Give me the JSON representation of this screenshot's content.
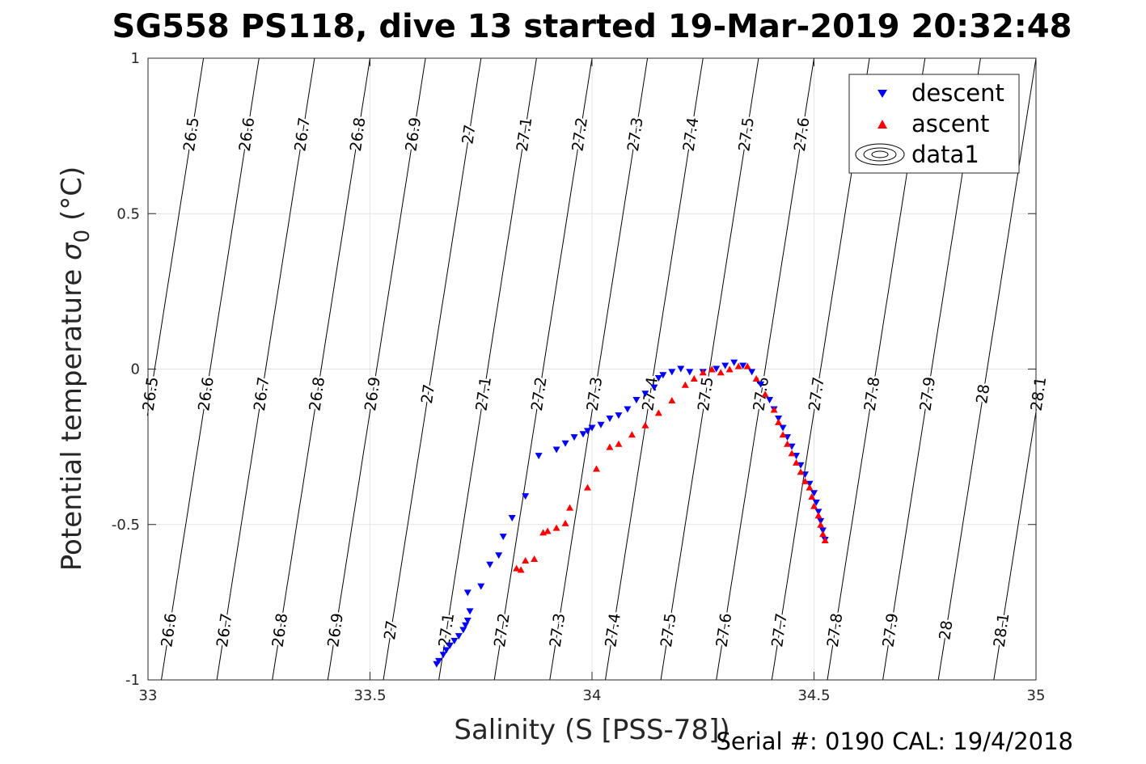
{
  "chart_data": {
    "type": "scatter",
    "title": "SG558 PS118, dive 13 started 19-Mar-2019 20:32:48",
    "xlabel": "Salinity (S [PSS-78])",
    "ylabel_main": "Potential temperature ",
    "ylabel_sigma": "σ",
    "ylabel_sub": "0",
    "ylabel_unit": " (°C)",
    "footer": "Serial #: 0190  CAL: 19/4/2018",
    "xlim": [
      33,
      35
    ],
    "ylim": [
      -1,
      1
    ],
    "x_ticks": [
      33,
      33.5,
      34,
      34.5,
      35
    ],
    "x_tick_labels": [
      "33",
      "33.5",
      "34",
      "34.5",
      "35"
    ],
    "y_ticks": [
      -1,
      -0.5,
      0,
      0.5,
      1
    ],
    "y_tick_labels": [
      "-1",
      "-0.5",
      "0",
      "0.5",
      "1"
    ],
    "grid": true,
    "legend_position": "top-right",
    "legend": [
      {
        "label": "descent",
        "marker": "triangle-down",
        "color": "#0000ff"
      },
      {
        "label": "ascent",
        "marker": "triangle-up",
        "color": "#ff0000"
      },
      {
        "label": "data1",
        "marker": "contour"
      }
    ],
    "contours": {
      "levels": [
        26.5,
        26.6,
        26.7,
        26.8,
        26.9,
        27.0,
        27.1,
        27.2,
        27.3,
        27.4,
        27.5,
        27.6,
        27.7,
        27.8,
        27.9,
        28.0,
        28.1
      ],
      "labels": [
        "26.5",
        "26.6",
        "26.7",
        "26.8",
        "26.9",
        "27",
        "27.1",
        "27.2",
        "27.3",
        "27.4",
        "27.5",
        "27.6",
        "27.7",
        "27.8",
        "27.9",
        "28",
        "28.1"
      ],
      "top_labeled": [
        26.5,
        26.6,
        26.7,
        26.8,
        26.9,
        27.0,
        27.1,
        27.2,
        27.3,
        27.4,
        27.5,
        27.6,
        27.7
      ],
      "mid_labeled": [
        26.5,
        26.6,
        26.7,
        26.8,
        26.9,
        27.0,
        27.1,
        27.2,
        27.3,
        27.4,
        27.5,
        27.6,
        27.7,
        27.8,
        27.9,
        28.0,
        28.1
      ],
      "bottom_labeled": [
        26.6,
        26.7,
        26.8,
        26.9,
        27.0,
        27.1,
        27.2,
        27.3,
        27.4,
        27.5,
        27.6,
        27.7,
        27.8,
        27.9,
        28.0,
        28.1
      ]
    },
    "series": [
      {
        "name": "descent",
        "color": "#0000ff",
        "marker": "triangle-down",
        "points": [
          [
            33.65,
            -0.95
          ],
          [
            33.655,
            -0.94
          ],
          [
            33.665,
            -0.92
          ],
          [
            33.672,
            -0.905
          ],
          [
            33.68,
            -0.89
          ],
          [
            33.69,
            -0.875
          ],
          [
            33.7,
            -0.86
          ],
          [
            33.71,
            -0.84
          ],
          [
            33.715,
            -0.825
          ],
          [
            33.72,
            -0.81
          ],
          [
            33.725,
            -0.78
          ],
          [
            33.72,
            -0.72
          ],
          [
            33.75,
            -0.7
          ],
          [
            33.77,
            -0.63
          ],
          [
            33.79,
            -0.6
          ],
          [
            33.8,
            -0.54
          ],
          [
            33.82,
            -0.48
          ],
          [
            33.85,
            -0.41
          ],
          [
            33.88,
            -0.28
          ],
          [
            33.92,
            -0.26
          ],
          [
            33.94,
            -0.24
          ],
          [
            33.96,
            -0.22
          ],
          [
            33.98,
            -0.21
          ],
          [
            33.99,
            -0.2
          ],
          [
            34.0,
            -0.19
          ],
          [
            34.02,
            -0.18
          ],
          [
            34.04,
            -0.16
          ],
          [
            34.06,
            -0.15
          ],
          [
            34.08,
            -0.13
          ],
          [
            34.1,
            -0.1
          ],
          [
            34.12,
            -0.08
          ],
          [
            34.14,
            -0.06
          ],
          [
            34.15,
            -0.03
          ],
          [
            34.16,
            -0.02
          ],
          [
            34.18,
            -0.01
          ],
          [
            34.2,
            0.0
          ],
          [
            34.22,
            -0.01
          ],
          [
            34.25,
            -0.01
          ],
          [
            34.28,
            0.0
          ],
          [
            34.3,
            0.01
          ],
          [
            34.32,
            0.02
          ],
          [
            34.34,
            0.01
          ],
          [
            34.36,
            -0.01
          ],
          [
            34.38,
            -0.05
          ],
          [
            34.4,
            -0.1
          ],
          [
            34.41,
            -0.13
          ],
          [
            34.42,
            -0.16
          ],
          [
            34.43,
            -0.19
          ],
          [
            34.44,
            -0.22
          ],
          [
            34.45,
            -0.25
          ],
          [
            34.46,
            -0.28
          ],
          [
            34.47,
            -0.31
          ],
          [
            34.48,
            -0.34
          ],
          [
            34.49,
            -0.37
          ],
          [
            34.5,
            -0.4
          ],
          [
            34.505,
            -0.43
          ],
          [
            34.51,
            -0.46
          ],
          [
            34.515,
            -0.49
          ],
          [
            34.52,
            -0.52
          ],
          [
            34.525,
            -0.55
          ]
        ]
      },
      {
        "name": "ascent",
        "color": "#ff0000",
        "marker": "triangle-up",
        "points": [
          [
            33.83,
            -0.64
          ],
          [
            33.84,
            -0.645
          ],
          [
            33.85,
            -0.615
          ],
          [
            33.87,
            -0.61
          ],
          [
            33.89,
            -0.525
          ],
          [
            33.9,
            -0.52
          ],
          [
            33.92,
            -0.51
          ],
          [
            33.94,
            -0.495
          ],
          [
            33.95,
            -0.445
          ],
          [
            33.99,
            -0.38
          ],
          [
            34.01,
            -0.32
          ],
          [
            34.04,
            -0.25
          ],
          [
            34.06,
            -0.24
          ],
          [
            34.09,
            -0.21
          ],
          [
            34.12,
            -0.18
          ],
          [
            34.15,
            -0.14
          ],
          [
            34.18,
            -0.1
          ],
          [
            34.21,
            -0.05
          ],
          [
            34.23,
            -0.03
          ],
          [
            34.25,
            -0.01
          ],
          [
            34.27,
            0.0
          ],
          [
            34.29,
            -0.01
          ],
          [
            34.31,
            0.0
          ],
          [
            34.33,
            0.01
          ],
          [
            34.35,
            0.01
          ],
          [
            34.37,
            -0.03
          ],
          [
            34.39,
            -0.08
          ],
          [
            34.41,
            -0.13
          ],
          [
            34.42,
            -0.17
          ],
          [
            34.43,
            -0.21
          ],
          [
            34.44,
            -0.24
          ],
          [
            34.45,
            -0.27
          ],
          [
            34.46,
            -0.3
          ],
          [
            34.47,
            -0.33
          ],
          [
            34.48,
            -0.36
          ],
          [
            34.49,
            -0.38
          ],
          [
            34.495,
            -0.41
          ],
          [
            34.5,
            -0.44
          ],
          [
            34.51,
            -0.47
          ],
          [
            34.515,
            -0.5
          ],
          [
            34.52,
            -0.53
          ],
          [
            34.525,
            -0.55
          ]
        ]
      }
    ]
  }
}
